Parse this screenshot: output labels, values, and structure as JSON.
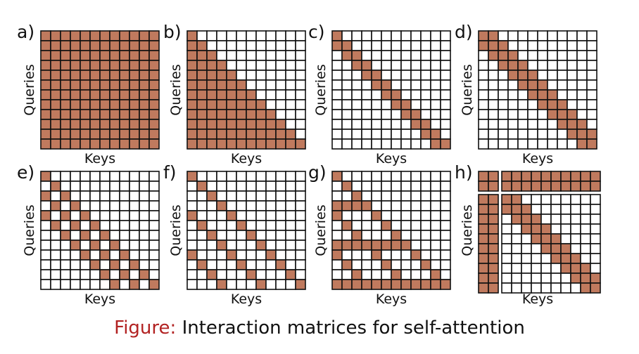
{
  "colors": {
    "fill": "#c07a5e",
    "grid": "#111111",
    "empty": "#ffffff",
    "caption_label": "#b22222"
  },
  "panels": [
    {
      "letter": "a)",
      "ylabel": "Queries",
      "xlabel": "Keys",
      "pattern": "full"
    },
    {
      "letter": "b)",
      "ylabel": "Queries",
      "xlabel": "Keys",
      "pattern": "causal"
    },
    {
      "letter": "c)",
      "ylabel": "Queries",
      "xlabel": "Keys",
      "pattern": "local-causal"
    },
    {
      "letter": "d)",
      "ylabel": "Queries",
      "xlabel": "Keys",
      "pattern": "local-band"
    },
    {
      "letter": "e)",
      "ylabel": "Queries",
      "xlabel": "Keys",
      "pattern": "dilated-band"
    },
    {
      "letter": "f)",
      "ylabel": "Queries",
      "xlabel": "Keys",
      "pattern": "strided"
    },
    {
      "letter": "g)",
      "ylabel": "Queries",
      "xlabel": "Keys",
      "pattern": "summary-rows"
    },
    {
      "letter": "h)",
      "ylabel": "Queries",
      "xlabel": "Keys",
      "pattern": "global-tokens"
    }
  ],
  "caption": {
    "label": "Figure:",
    "text": "Interaction matrices for self-attention"
  }
}
